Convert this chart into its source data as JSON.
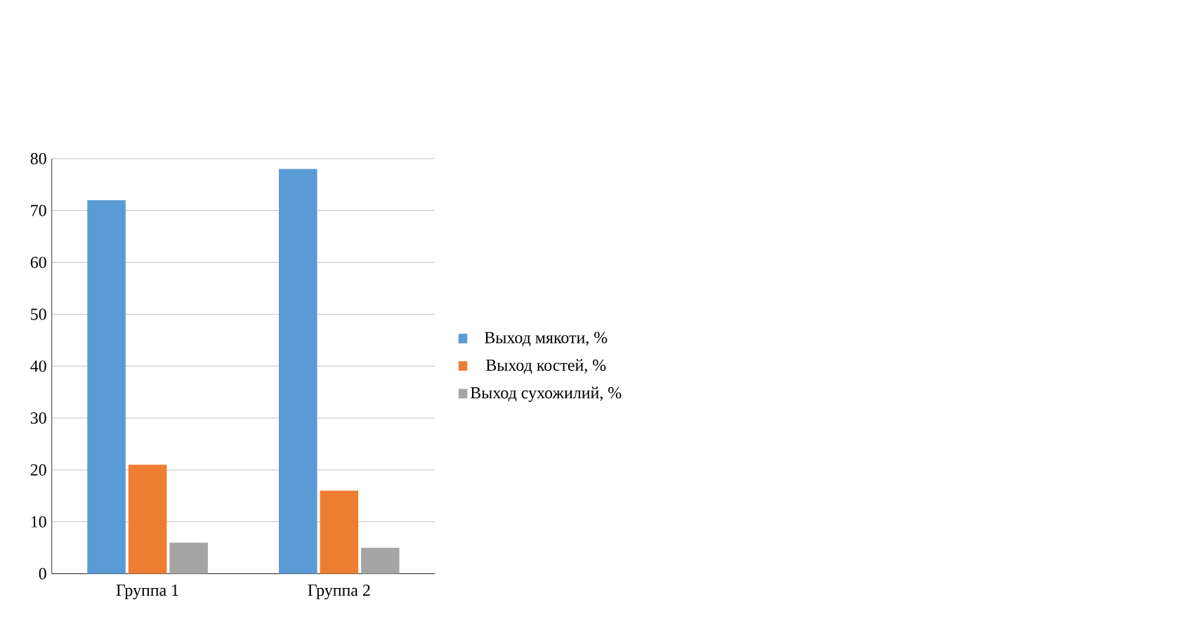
{
  "chart_data": {
    "type": "bar",
    "categories": [
      "Группа 1",
      "Группа 2"
    ],
    "series": [
      {
        "name": "Выход мякоти, %",
        "color": "#5b9bd5",
        "values": [
          72,
          78
        ]
      },
      {
        "name": "Выход костей, %",
        "color": "#ed7d31",
        "values": [
          21,
          16
        ]
      },
      {
        "name": "Выход сухожилий,  %",
        "color": "#a5a5a5",
        "values": [
          6,
          5
        ]
      }
    ],
    "ylim": [
      0,
      80
    ],
    "yticks": [
      0,
      10,
      20,
      30,
      40,
      50,
      60,
      70,
      80
    ],
    "grid": "y",
    "legend": "right"
  }
}
